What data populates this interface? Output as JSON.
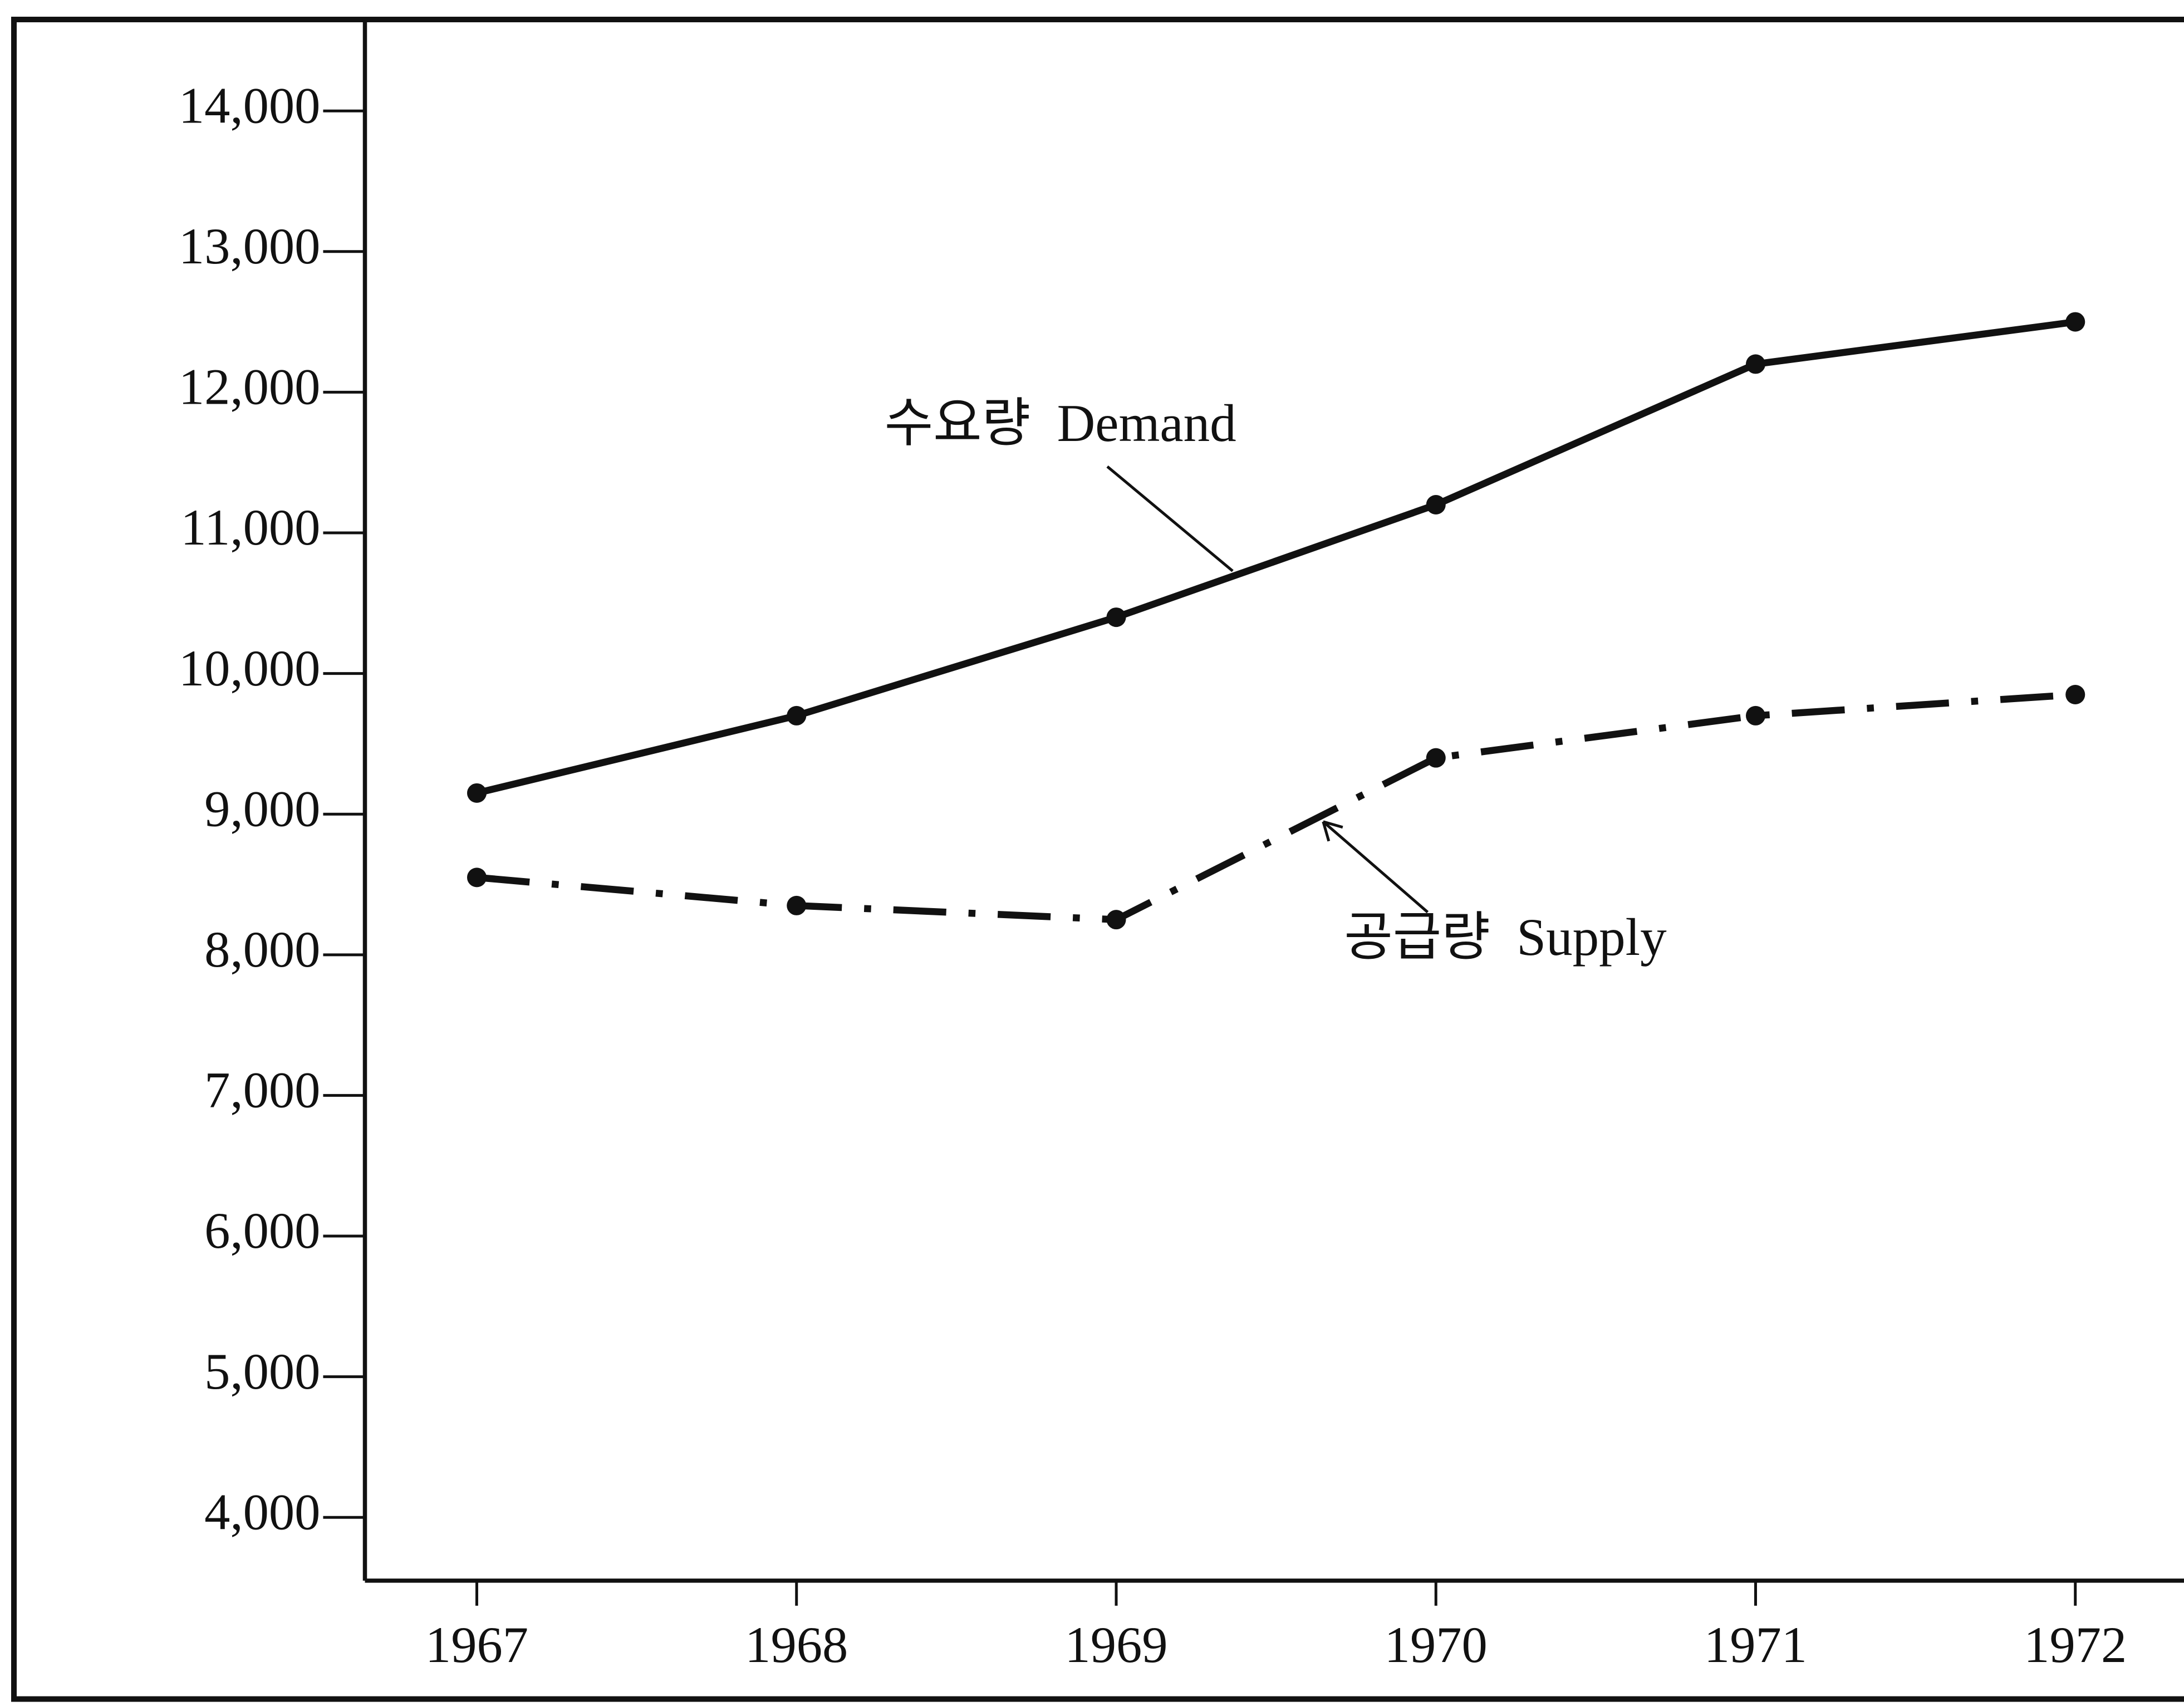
{
  "chart_data": {
    "type": "line",
    "x": [
      1967,
      1968,
      1969,
      1970,
      1971,
      1972
    ],
    "xlim": [
      1966.65,
      1972.34
    ],
    "xticks": [
      1967,
      1968,
      1969,
      1970,
      1971,
      1972
    ],
    "ylim": [
      3550,
      14650
    ],
    "yticks": [
      {
        "value": 4000,
        "label": "4,000"
      },
      {
        "value": 5000,
        "label": "5,000"
      },
      {
        "value": 6000,
        "label": "6,000"
      },
      {
        "value": 7000,
        "label": "7,000"
      },
      {
        "value": 8000,
        "label": "8,000"
      },
      {
        "value": 9000,
        "label": "9,000"
      },
      {
        "value": 10000,
        "label": "10,000"
      },
      {
        "value": 11000,
        "label": "11,000"
      },
      {
        "value": 12000,
        "label": "12,000"
      },
      {
        "value": 13000,
        "label": "13,000"
      },
      {
        "value": 14000,
        "label": "14,000"
      }
    ],
    "series": [
      {
        "name": "수요량  Demand",
        "color": "#111111",
        "style": "solid",
        "values": [
          9150,
          9700,
          10400,
          11200,
          12200,
          12500
        ]
      },
      {
        "name": "공급량  Supply",
        "color": "#111111",
        "style": "dashdot",
        "values": [
          8550,
          8350,
          8250,
          9400,
          9700,
          9850
        ]
      }
    ]
  }
}
